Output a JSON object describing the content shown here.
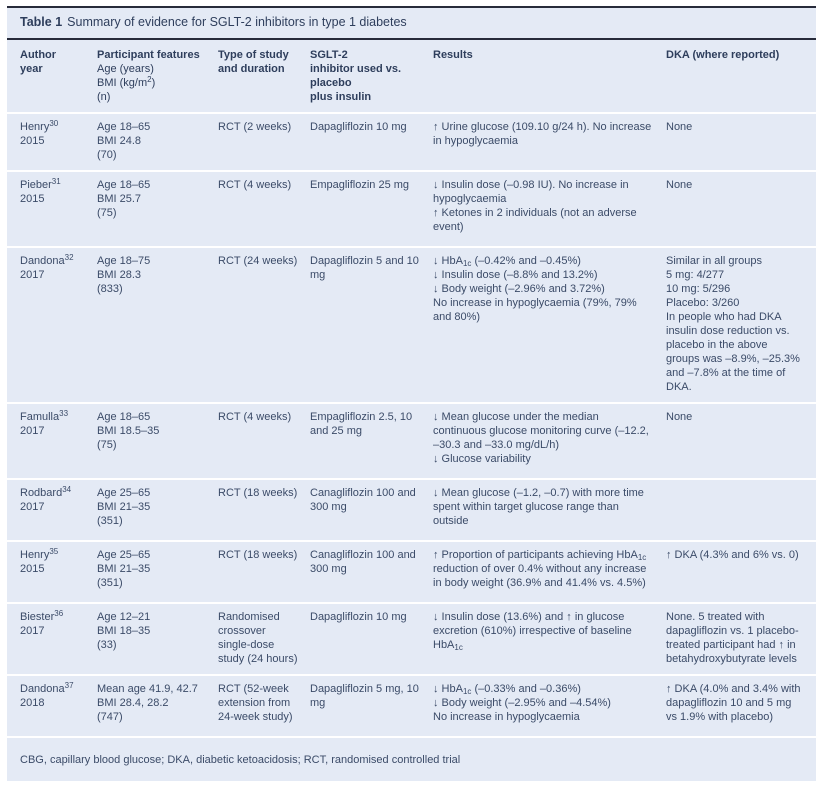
{
  "caption": {
    "label": "Table 1",
    "text": "Summary of evidence for SGLT-2 inhibitors in type 1 diabetes"
  },
  "columns": [
    {
      "title_lines": [
        "Author",
        "year"
      ],
      "sub_lines": []
    },
    {
      "title_lines": [
        "Participant features"
      ],
      "sub_lines": [
        "Age (years)",
        "BMI (kg/m^2^)",
        "(n)"
      ]
    },
    {
      "title_lines": [
        "Type of study",
        "and duration"
      ],
      "sub_lines": []
    },
    {
      "title_lines": [
        "SGLT-2",
        "inhibitor used vs.",
        "placebo",
        "plus insulin"
      ],
      "sub_lines": []
    },
    {
      "title_lines": [
        "Results"
      ],
      "sub_lines": []
    },
    {
      "title_lines": [
        "DKA (where reported)"
      ],
      "sub_lines": []
    }
  ],
  "rows": [
    {
      "author": "Henry^30^ 2015",
      "participant": [
        "Age 18–65",
        "BMI 24.8",
        "(70)"
      ],
      "study": "RCT (2 weeks)",
      "inhibitor": "Dapagliflozin 10 mg",
      "results": [
        "↑ Urine glucose (109.10 g/24 h). No increase in hypoglycaemia"
      ],
      "dka": [
        "None"
      ]
    },
    {
      "author": "Pieber^31^ 2015",
      "participant": [
        "Age 18–65",
        "BMI 25.7",
        "(75)"
      ],
      "study": "RCT (4 weeks)",
      "inhibitor": "Empagliflozin 25 mg",
      "results": [
        "↓ Insulin dose (–0.98 IU). No increase in hypoglycaemia",
        "↑ Ketones in 2 individuals (not an adverse event)"
      ],
      "dka": [
        "None"
      ]
    },
    {
      "author": "Dandona^32^ 2017",
      "participant": [
        "Age 18–75",
        "BMI 28.3",
        "(833)"
      ],
      "study": "RCT (24 weeks)",
      "inhibitor": "Dapagliflozin 5 and 10 mg",
      "results": [
        "↓ HbA~1c~ (–0.42% and –0.45%)",
        "↓ Insulin dose (–8.8% and 13.2%)",
        "↓ Body weight (–2.96% and 3.72%)",
        "No increase in hypoglycaemia (79%, 79% and 80%)"
      ],
      "dka": [
        "Similar in all groups",
        "5 mg: 4/277",
        "10 mg: 5/296",
        "Placebo: 3/260",
        "In people who had DKA insulin dose reduction vs. placebo in the above groups was –8.9%, –25.3% and –7.8% at the time of DKA."
      ]
    },
    {
      "author": "Famulla^33^ 2017",
      "participant": [
        "Age 18–65",
        "BMI 18.5–35",
        "(75)"
      ],
      "study": "RCT (4 weeks)",
      "inhibitor": "Empagliflozin 2.5, 10 and 25 mg",
      "results": [
        "↓ Mean glucose under the median continuous glucose monitoring curve (–12.2, –30.3 and –33.0 mg/dL/h)",
        "↓ Glucose variability"
      ],
      "dka": [
        "None"
      ]
    },
    {
      "author": "Rodbard^34^ 2017",
      "participant": [
        "Age 25–65",
        "BMI 21–35",
        "(351)"
      ],
      "study": "RCT (18 weeks)",
      "inhibitor": "Canagliflozin 100 and 300 mg",
      "results": [
        "↓ Mean glucose (–1.2, –0.7) with more time spent within target glucose range than outside"
      ],
      "dka": []
    },
    {
      "author": "Henry^35^ 2015",
      "participant": [
        "Age 25–65",
        "BMI 21–35",
        "(351)"
      ],
      "study": "RCT (18 weeks)",
      "inhibitor": "Canagliflozin 100 and 300 mg",
      "results": [
        "↑ Proportion of participants achieving HbA~1c~ reduction of over 0.4% without any increase in body weight (36.9% and 41.4% vs. 4.5%)"
      ],
      "dka": [
        "↑ DKA (4.3% and 6% vs. 0)"
      ]
    },
    {
      "author": "Biester^36^ 2017",
      "participant": [
        "Age 12–21",
        "BMI 18–35",
        "(33)"
      ],
      "study": "Randomised crossover single-dose study (24 hours)",
      "inhibitor": "Dapagliflozin 10 mg",
      "results": [
        "↓ Insulin dose (13.6%) and ↑ in glucose excretion (610%) irrespective of baseline HbA~1c~"
      ],
      "dka": [
        "None. 5 treated with dapagliflozin vs. 1 placebo-treated participant had ↑ in betahydroxybutyrate levels"
      ]
    },
    {
      "author": "Dandona^37^ 2018",
      "participant": [
        "Mean age 41.9, 42.7",
        "BMI 28.4, 28.2",
        "(747)"
      ],
      "study": "RCT (52-week extension from 24-week study)",
      "inhibitor": "Dapagliflozin 5 mg, 10 mg",
      "results": [
        "↓ HbA~1c~ (–0.33% and –0.36%)",
        "↓ Body weight (–2.95% and –4.54%)",
        "No increase in hypoglycaemia"
      ],
      "dka": [
        "↑ DKA (4.0% and 3.4% with dapagliflozin 10 and 5 mg vs 1.9% with placebo)"
      ]
    }
  ],
  "footnote": "CBG, capillary blood glucose; DKA, diabetic ketoacidosis; RCT, randomised controlled trial",
  "colors": {
    "table_background": "#e4eaf5",
    "rule": "#272b3a",
    "heading_text": "#2e3e5c",
    "body_text": "#3b4b68",
    "row_separator": "#ffffff"
  }
}
